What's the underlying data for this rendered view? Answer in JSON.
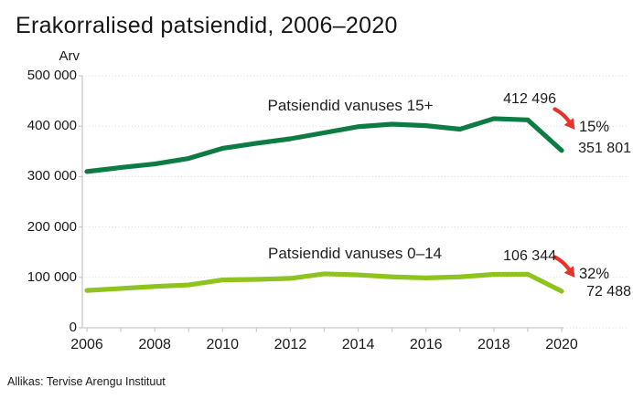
{
  "title": "Erakorralised patsiendid, 2006–2020",
  "source": "Allikas: Tervise Arengu Instituut",
  "colors": {
    "series_15plus": "#0d7c44",
    "series_0_14": "#8fc31f",
    "decline_red": "#e5352b",
    "axis": "#c9c9c9",
    "grid": "#d6d6d6",
    "text": "#1a1a1a"
  },
  "chart_data": {
    "type": "line",
    "title": "Erakorralised patsiendid, 2006–2020",
    "ylabel": "Arv",
    "xlabel": "",
    "ylim": [
      0,
      500000
    ],
    "grid": "horizontal-dotted",
    "legend_position": "inline-above-lines",
    "x": [
      2006,
      2007,
      2008,
      2009,
      2010,
      2011,
      2012,
      2013,
      2014,
      2015,
      2016,
      2017,
      2018,
      2019,
      2020
    ],
    "xtick_years": [
      2006,
      2008,
      2010,
      2012,
      2014,
      2016,
      2018,
      2020
    ],
    "xtick_labels": [
      "2006",
      "2008",
      "2010",
      "2012",
      "2014",
      "2016",
      "2018",
      "2020"
    ],
    "ytick_values": [
      0,
      100000,
      200000,
      300000,
      400000,
      500000
    ],
    "ytick_labels": [
      "0",
      "100 000",
      "200 000",
      "300 000",
      "400 000",
      "500 000"
    ],
    "series": [
      {
        "name": "Patsiendid vanuses 15+",
        "color": "#0d7c44",
        "values": [
          310000,
          318000,
          325000,
          336000,
          356000,
          366000,
          375000,
          387000,
          399000,
          404000,
          401000,
          394000,
          415000,
          412496,
          351801
        ]
      },
      {
        "name": "Patsiendid vanuses 0–14",
        "color": "#8fc31f",
        "values": [
          74000,
          78000,
          82000,
          85000,
          95000,
          96000,
          98000,
          107000,
          105000,
          101000,
          99000,
          101000,
          106000,
          106344,
          72488
        ]
      }
    ],
    "annotations": [
      {
        "series": "Patsiendid vanuses 15+",
        "peak_label": "412 496",
        "end_label": "351 801",
        "change_label": "15%",
        "direction": "down"
      },
      {
        "series": "Patsiendid vanuses 0–14",
        "peak_label": "106 344",
        "end_label": "72 488",
        "change_label": "32%",
        "direction": "down"
      }
    ]
  }
}
